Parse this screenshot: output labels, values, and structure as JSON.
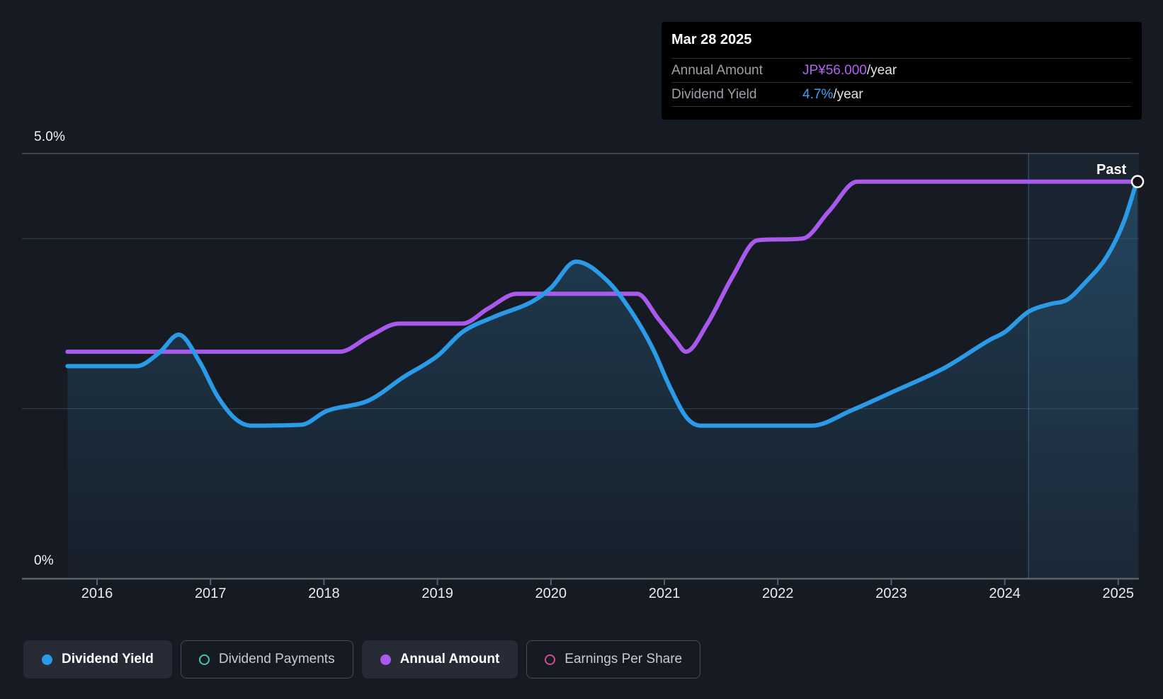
{
  "page": {
    "background": "#151A23"
  },
  "tooltip": {
    "date": "Mar 28 2025",
    "rows": [
      {
        "label": "Annual Amount",
        "value": "JP¥56.000",
        "value_color": "#B163F0",
        "suffix": "/year"
      },
      {
        "label": "Dividend Yield",
        "value": "4.7%",
        "value_color": "#38A3F2",
        "suffix": "/year"
      }
    ]
  },
  "labels": {
    "y_top": "5.0%",
    "y_bottom": "0%",
    "past": "Past"
  },
  "legend": [
    {
      "label": "Dividend Yield",
      "marker": "dot",
      "color": "#2B9BE8",
      "active": true
    },
    {
      "label": "Dividend Payments",
      "marker": "ring",
      "color": "#3FC8AF",
      "active": false
    },
    {
      "label": "Annual Amount",
      "marker": "dot",
      "color": "#A95AEC",
      "active": true
    },
    {
      "label": "Earnings Per Share",
      "marker": "ring",
      "color": "#CE4F8D",
      "active": false
    }
  ],
  "chart_data": {
    "type": "line",
    "x_ticks": [
      2016,
      2017,
      2018,
      2019,
      2020,
      2021,
      2022,
      2023,
      2024,
      2025
    ],
    "x_range": [
      2015.74,
      2025.26
    ],
    "y_axis": {
      "min": 0,
      "max": 5,
      "unit": "%",
      "labeled_gridlines": [
        5.0,
        0
      ],
      "unlabeled_gridlines": [
        4.0,
        2.0
      ],
      "grid": "on",
      "legend_position": "bottom"
    },
    "past_divider_x": 2024.21,
    "end_marker": {
      "x": 2025.17,
      "pct": 4.67
    },
    "series": [
      {
        "name": "Dividend Yield",
        "color": "#2B9BE8",
        "style": "area-line",
        "unit": "%",
        "points": [
          [
            2015.74,
            2.5
          ],
          [
            2016.35,
            2.5
          ],
          [
            2016.55,
            2.66
          ],
          [
            2016.72,
            2.87
          ],
          [
            2016.9,
            2.56
          ],
          [
            2017.06,
            2.15
          ],
          [
            2017.22,
            1.88
          ],
          [
            2017.36,
            1.8
          ],
          [
            2017.8,
            1.81
          ],
          [
            2018.02,
            1.97
          ],
          [
            2018.4,
            2.1
          ],
          [
            2018.7,
            2.37
          ],
          [
            2019.0,
            2.62
          ],
          [
            2019.22,
            2.9
          ],
          [
            2019.5,
            3.08
          ],
          [
            2019.85,
            3.27
          ],
          [
            2020.0,
            3.42
          ],
          [
            2020.22,
            3.73
          ],
          [
            2020.5,
            3.5
          ],
          [
            2020.72,
            3.12
          ],
          [
            2020.9,
            2.7
          ],
          [
            2021.05,
            2.25
          ],
          [
            2021.2,
            1.89
          ],
          [
            2021.32,
            1.8
          ],
          [
            2022.3,
            1.8
          ],
          [
            2022.65,
            1.98
          ],
          [
            2023.0,
            2.19
          ],
          [
            2023.47,
            2.48
          ],
          [
            2023.87,
            2.81
          ],
          [
            2024.0,
            2.9
          ],
          [
            2024.21,
            3.14
          ],
          [
            2024.4,
            3.23
          ],
          [
            2024.55,
            3.28
          ],
          [
            2024.7,
            3.47
          ],
          [
            2024.9,
            3.79
          ],
          [
            2025.05,
            4.2
          ],
          [
            2025.17,
            4.7
          ]
        ]
      },
      {
        "name": "Annual Amount",
        "color": "#A95AEC",
        "style": "line",
        "unit": "JP¥/year",
        "value_axis": "hidden",
        "final_value_label": "JP¥56.000/year",
        "points_plot_pct": [
          [
            2015.74,
            2.67
          ],
          [
            2018.14,
            2.67
          ],
          [
            2018.4,
            2.85
          ],
          [
            2018.66,
            3.0
          ],
          [
            2019.22,
            3.0
          ],
          [
            2019.45,
            3.18
          ],
          [
            2019.7,
            3.35
          ],
          [
            2020.76,
            3.35
          ],
          [
            2020.95,
            3.05
          ],
          [
            2021.1,
            2.8
          ],
          [
            2021.19,
            2.67
          ],
          [
            2021.38,
            3.0
          ],
          [
            2021.6,
            3.55
          ],
          [
            2021.82,
            3.98
          ],
          [
            2022.22,
            4.0
          ],
          [
            2022.45,
            4.32
          ],
          [
            2022.7,
            4.67
          ],
          [
            2025.17,
            4.67
          ]
        ],
        "amount_steps_est_jpy": [
          {
            "period": "2015-2018",
            "amount": 30
          },
          {
            "period": "2018-2019",
            "amount": 34
          },
          {
            "period": "2019-2021",
            "amount": 39
          },
          {
            "period": "2021 dip",
            "amount": 30
          },
          {
            "period": "2021-2022",
            "amount": 48
          },
          {
            "period": "2022-2025",
            "amount": 56
          }
        ]
      }
    ]
  },
  "colors": {
    "background": "#151A23",
    "grid_strong": "#4A515C",
    "grid_faint": "#353C47",
    "axis": "#5A616B",
    "area_fill": "56,140,190",
    "past_band": "rgba(105,175,235,0.07)",
    "past_divider": "rgba(130,185,235,0.28)"
  }
}
